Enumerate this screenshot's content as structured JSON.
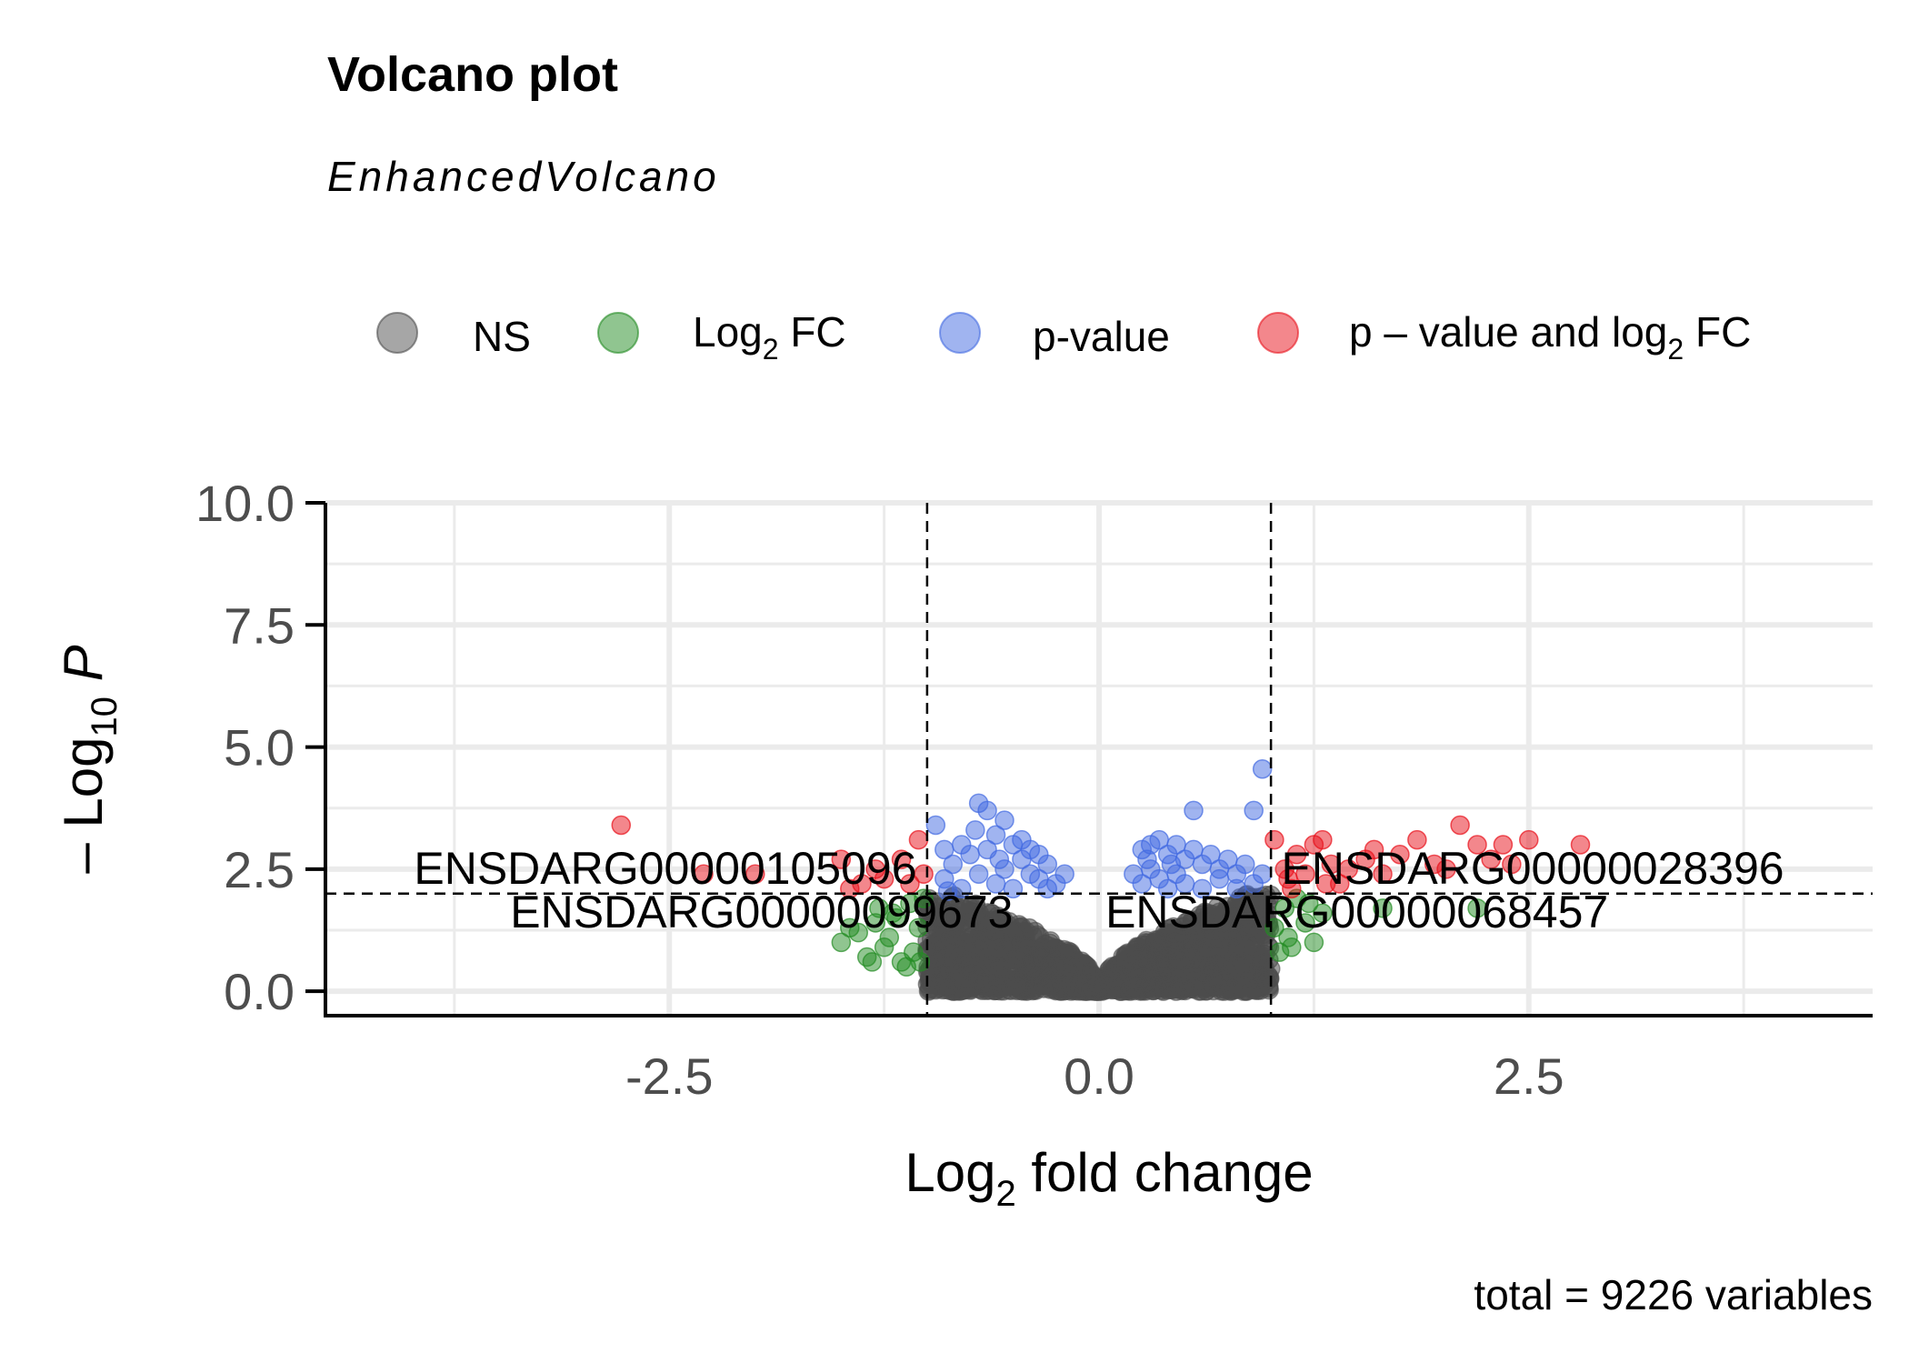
{
  "chart_data": {
    "type": "scatter",
    "title": "Volcano plot",
    "subtitle": "EnhancedVolcano",
    "xlabel": "Log2 fold change",
    "ylabel": "- Log10 P",
    "caption": "total = 9226 variables",
    "xlim": [
      -4.5,
      4.5
    ],
    "ylim": [
      -0.5,
      10.0
    ],
    "x_ticks": [
      "-2.5",
      "0.0",
      "2.5"
    ],
    "y_ticks": [
      "0.0",
      "2.5",
      "5.0",
      "7.5",
      "10.0"
    ],
    "fc_cutoff": 1.0,
    "p_cutoff_neglog10": 2.0,
    "legend": [
      {
        "key": "NS",
        "label": "NS",
        "color": "#4d4d4d"
      },
      {
        "key": "FC",
        "label": "Log2 FC",
        "color": "#228b22"
      },
      {
        "key": "P",
        "label": "p-value",
        "color": "#4169e1"
      },
      {
        "key": "FC_P",
        "label": "p – value and log2 FC",
        "color": "#e8101a"
      }
    ],
    "labeled_genes": [
      {
        "label": "ENSDARG00000105096",
        "x": -1.06,
        "y": 2.5
      },
      {
        "label": "ENSDARG00000099673",
        "x": -0.5,
        "y": 1.6
      },
      {
        "label": "ENSDARG00000028396",
        "x": 1.06,
        "y": 2.5
      },
      {
        "label": "ENSDARG00000068457",
        "x": 1.5,
        "y": 1.6
      }
    ],
    "points_red": [
      [
        -2.78,
        3.4
      ],
      [
        -2.3,
        2.4
      ],
      [
        -2.0,
        2.4
      ],
      [
        -1.5,
        2.7
      ],
      [
        -1.45,
        2.1
      ],
      [
        -1.3,
        2.5
      ],
      [
        -1.25,
        2.3
      ],
      [
        -1.1,
        2.2
      ],
      [
        -1.05,
        3.1
      ],
      [
        -1.15,
        2.7
      ],
      [
        -1.02,
        2.4
      ],
      [
        -1.38,
        2.2
      ],
      [
        1.02,
        3.1
      ],
      [
        1.08,
        2.5
      ],
      [
        1.1,
        2.3
      ],
      [
        1.15,
        2.8
      ],
      [
        1.2,
        2.4
      ],
      [
        1.25,
        3.0
      ],
      [
        1.3,
        3.1
      ],
      [
        1.35,
        2.6
      ],
      [
        1.4,
        2.2
      ],
      [
        1.45,
        2.5
      ],
      [
        1.55,
        2.7
      ],
      [
        1.65,
        2.4
      ],
      [
        1.75,
        2.8
      ],
      [
        1.85,
        3.1
      ],
      [
        1.95,
        2.6
      ],
      [
        2.1,
        3.4
      ],
      [
        2.2,
        3.0
      ],
      [
        2.28,
        2.7
      ],
      [
        2.35,
        3.0
      ],
      [
        2.5,
        3.1
      ],
      [
        2.8,
        3.0
      ],
      [
        1.12,
        2.1
      ],
      [
        1.32,
        2.2
      ],
      [
        1.6,
        2.9
      ],
      [
        2.02,
        2.5
      ],
      [
        2.4,
        2.6
      ]
    ],
    "points_green": [
      [
        -1.5,
        1.0
      ],
      [
        -1.4,
        1.2
      ],
      [
        -1.35,
        0.7
      ],
      [
        -1.3,
        1.4
      ],
      [
        -1.25,
        0.9
      ],
      [
        -1.2,
        1.6
      ],
      [
        -1.15,
        0.6
      ],
      [
        -1.1,
        1.8
      ],
      [
        -1.08,
        0.8
      ],
      [
        -1.05,
        1.3
      ],
      [
        -1.02,
        1.9
      ],
      [
        -1.22,
        1.1
      ],
      [
        -1.32,
        0.6
      ],
      [
        -1.45,
        1.3
      ],
      [
        -1.12,
        0.5
      ],
      [
        -1.18,
        1.5
      ],
      [
        -1.28,
        1.7
      ],
      [
        -1.04,
        0.6
      ],
      [
        1.02,
        1.3
      ],
      [
        1.05,
        0.8
      ],
      [
        1.08,
        1.7
      ],
      [
        1.1,
        1.1
      ],
      [
        1.15,
        1.9
      ],
      [
        1.2,
        1.4
      ],
      [
        1.25,
        1.0
      ],
      [
        1.3,
        1.6
      ],
      [
        1.65,
        1.7
      ],
      [
        2.2,
        1.7
      ],
      [
        1.12,
        0.9
      ],
      [
        1.22,
        1.8
      ]
    ],
    "points_blue": [
      [
        -0.95,
        3.4
      ],
      [
        -0.8,
        3.0
      ],
      [
        -0.7,
        3.85
      ],
      [
        -0.65,
        3.7
      ],
      [
        -0.9,
        2.9
      ],
      [
        -0.85,
        2.6
      ],
      [
        -0.75,
        2.8
      ],
      [
        -0.6,
        3.2
      ],
      [
        -0.55,
        2.5
      ],
      [
        -0.5,
        3.0
      ],
      [
        -0.45,
        2.7
      ],
      [
        -0.4,
        2.9
      ],
      [
        -0.35,
        2.3
      ],
      [
        -0.3,
        2.6
      ],
      [
        -0.25,
        2.2
      ],
      [
        -0.2,
        2.4
      ],
      [
        -0.6,
        2.2
      ],
      [
        -0.7,
        2.4
      ],
      [
        -0.8,
        2.1
      ],
      [
        -0.5,
        2.1
      ],
      [
        -0.4,
        2.4
      ],
      [
        -0.3,
        2.1
      ],
      [
        -0.9,
        2.3
      ],
      [
        -0.55,
        3.5
      ],
      [
        -0.65,
        2.9
      ],
      [
        -0.45,
        3.1
      ],
      [
        -0.35,
        2.8
      ],
      [
        -0.88,
        2.05
      ],
      [
        -0.72,
        3.3
      ],
      [
        -0.58,
        2.7
      ],
      [
        0.95,
        4.55
      ],
      [
        0.9,
        3.7
      ],
      [
        0.55,
        3.7
      ],
      [
        0.25,
        2.9
      ],
      [
        0.3,
        3.0
      ],
      [
        0.35,
        3.1
      ],
      [
        0.4,
        2.8
      ],
      [
        0.45,
        3.0
      ],
      [
        0.5,
        2.7
      ],
      [
        0.55,
        2.9
      ],
      [
        0.6,
        2.6
      ],
      [
        0.65,
        2.8
      ],
      [
        0.7,
        2.5
      ],
      [
        0.75,
        2.7
      ],
      [
        0.8,
        2.4
      ],
      [
        0.85,
        2.6
      ],
      [
        0.9,
        2.2
      ],
      [
        0.2,
        2.4
      ],
      [
        0.25,
        2.2
      ],
      [
        0.3,
        2.5
      ],
      [
        0.35,
        2.3
      ],
      [
        0.4,
        2.1
      ],
      [
        0.45,
        2.4
      ],
      [
        0.5,
        2.2
      ],
      [
        0.6,
        2.1
      ],
      [
        0.7,
        2.3
      ],
      [
        0.8,
        2.1
      ],
      [
        0.95,
        2.4
      ],
      [
        0.28,
        2.7
      ],
      [
        0.42,
        2.6
      ]
    ]
  }
}
